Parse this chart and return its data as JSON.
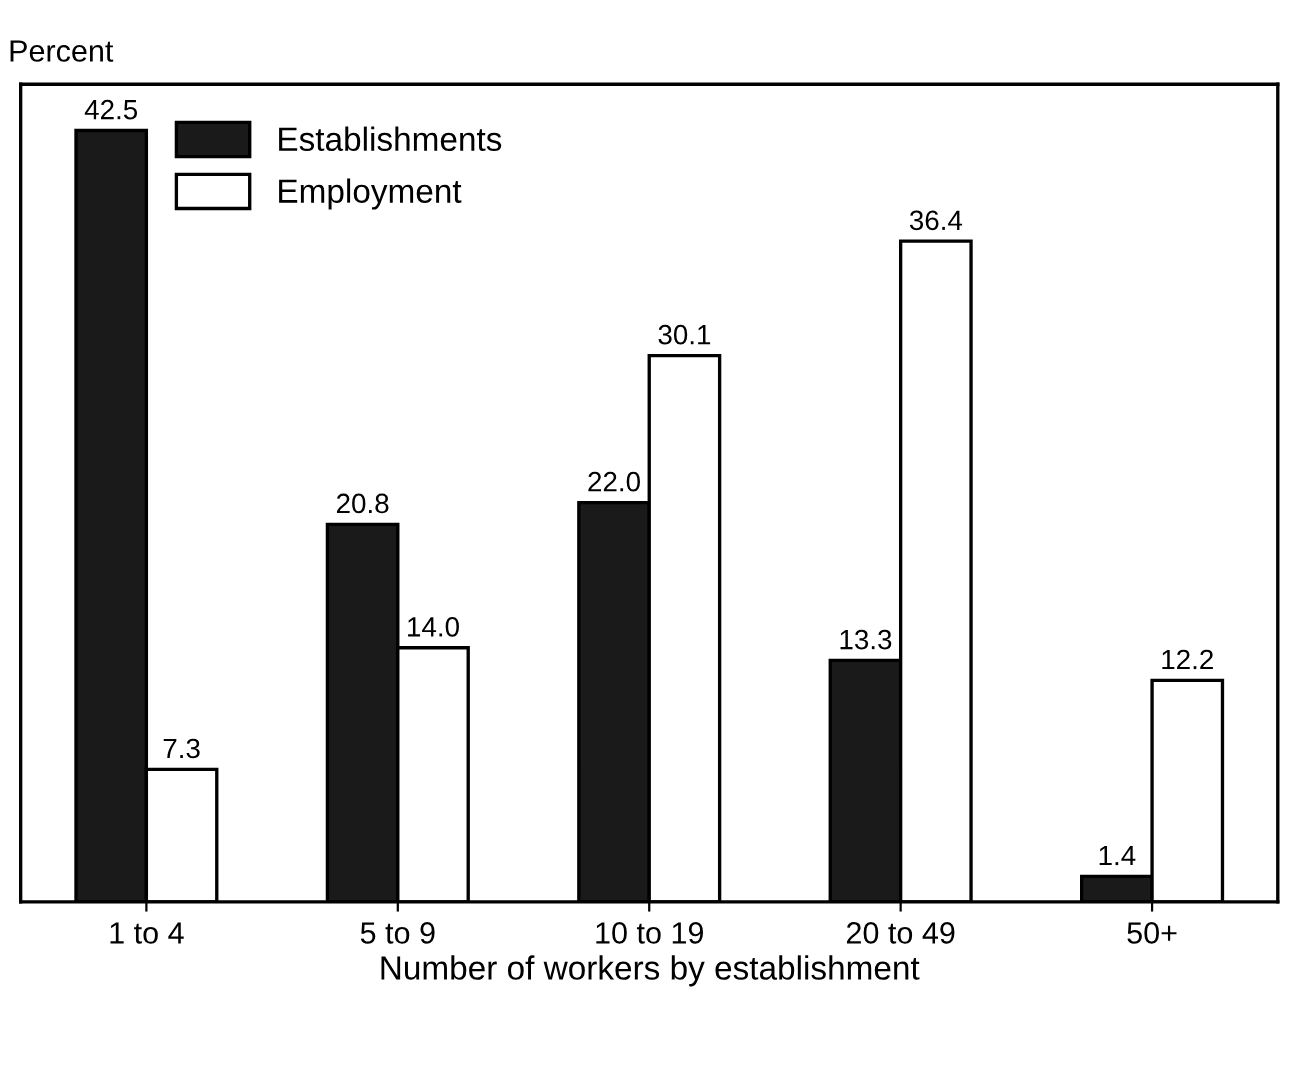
{
  "chart_data": {
    "type": "bar",
    "ylabel": "Percent",
    "xlabel": "Number of workers by establishment",
    "categories": [
      "1 to 4",
      "5 to 9",
      "10 to 19",
      "20 to 49",
      "50+"
    ],
    "series": [
      {
        "name": "Establishments",
        "color": "#1a1a1a",
        "values": [
          42.5,
          20.8,
          22.0,
          13.3,
          1.4
        ],
        "value_labels": [
          "42.5",
          "20.8",
          "22.0",
          "13.3",
          "1.4"
        ]
      },
      {
        "name": "Employment",
        "color": "#ffffff",
        "values": [
          7.3,
          14.0,
          30.1,
          36.4,
          12.2
        ],
        "value_labels": [
          "7.3",
          "14.0",
          "30.1",
          "36.4",
          "12.2"
        ]
      }
    ],
    "legend": "top left",
    "grid": false,
    "tick_labels": "x"
  }
}
